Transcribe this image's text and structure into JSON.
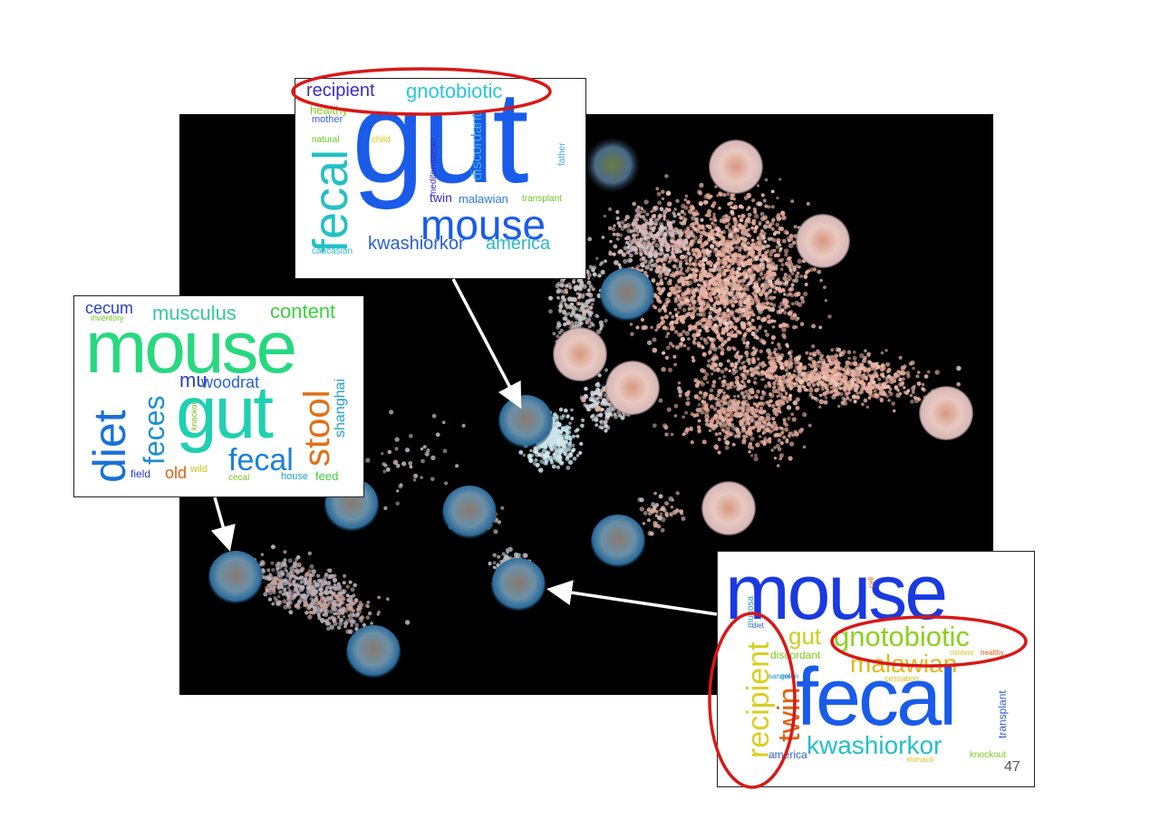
{
  "slide_number": "47",
  "colors": {
    "background": "#ffffff",
    "panel": "#000000",
    "highlight_ellipse": "#d81818",
    "arrow": "#ffffff",
    "point_human": "#e8b0a0",
    "point_mouse": "#c8e4ec"
  },
  "icons": [
    "mouse-photo-icon",
    "intestine-photo-icon",
    "landscape-photo-icon"
  ],
  "wordclouds": {
    "top": {
      "words": [
        {
          "t": "recipient",
          "c": "#3a2fb8"
        },
        {
          "t": "gnotobiotic",
          "c": "#2cc6d8"
        },
        {
          "t": "healthy",
          "c": "#8ccc20"
        },
        {
          "t": "mother",
          "c": "#3a5fd8"
        },
        {
          "t": "natural",
          "c": "#6cc820"
        },
        {
          "t": "child",
          "c": "#e0c820"
        },
        {
          "t": "gut",
          "c": "#1a5ce8"
        },
        {
          "t": "fecal",
          "c": "#24c0c4"
        },
        {
          "t": "mediterranean",
          "c": "#3a2fb8"
        },
        {
          "t": "discordant",
          "c": "#40a8e0"
        },
        {
          "t": "father",
          "c": "#40a8e0"
        },
        {
          "t": "twin",
          "c": "#3a2fb8"
        },
        {
          "t": "malawian",
          "c": "#2c7ae0"
        },
        {
          "t": "transplant",
          "c": "#6cc820"
        },
        {
          "t": "mouse",
          "c": "#1a5ce8"
        },
        {
          "t": "caucasian",
          "c": "#30b8c8"
        },
        {
          "t": "kwashiorkor",
          "c": "#2a60d0"
        },
        {
          "t": "america",
          "c": "#2cb8c8"
        }
      ]
    },
    "left": {
      "words": [
        {
          "t": "cecum",
          "c": "#2a40c0"
        },
        {
          "t": "inventory",
          "c": "#70c820"
        },
        {
          "t": "musculus",
          "c": "#38c8a0"
        },
        {
          "t": "content",
          "c": "#40d040"
        },
        {
          "t": "mouse",
          "c": "#28d880"
        },
        {
          "t": "diet",
          "c": "#1a70d8"
        },
        {
          "t": "feces",
          "c": "#2090d0"
        },
        {
          "t": "knockout",
          "c": "#80b820"
        },
        {
          "t": "mu",
          "c": "#2a40c0"
        },
        {
          "t": "woodrat",
          "c": "#2a60d0"
        },
        {
          "t": "gut",
          "c": "#20d0b0"
        },
        {
          "t": "stool",
          "c": "#e07018"
        },
        {
          "t": "shanghai",
          "c": "#20a0d0"
        },
        {
          "t": "fecal",
          "c": "#1a80d8"
        },
        {
          "t": "field",
          "c": "#2a40c0"
        },
        {
          "t": "old",
          "c": "#e06010"
        },
        {
          "t": "wild",
          "c": "#d0c020"
        },
        {
          "t": "cecal",
          "c": "#80c820"
        },
        {
          "t": "house",
          "c": "#20a0d0"
        },
        {
          "t": "feed",
          "c": "#40d040"
        }
      ]
    },
    "right": {
      "words": [
        {
          "t": "mouse",
          "c": "#1a3ae0"
        },
        {
          "t": "mucosa",
          "c": "#2090d0"
        },
        {
          "t": "diet",
          "c": "#2a60d0"
        },
        {
          "t": "cell",
          "c": "#e06010"
        },
        {
          "t": "gut",
          "c": "#c8d020"
        },
        {
          "t": "gnotobiotic",
          "c": "#8cd020"
        },
        {
          "t": "discordant",
          "c": "#80c820"
        },
        {
          "t": "content",
          "c": "#e0c020"
        },
        {
          "t": "healthy",
          "c": "#e06010"
        },
        {
          "t": "malawian",
          "c": "#e0b820"
        },
        {
          "t": "sanger",
          "c": "#2090d0"
        },
        {
          "t": "colon",
          "c": "#2090d0"
        },
        {
          "t": "cessation",
          "c": "#e0b820"
        },
        {
          "t": "recipient",
          "c": "#d8d020"
        },
        {
          "t": "twin",
          "c": "#e06010"
        },
        {
          "t": "fecal",
          "c": "#1a5ce8"
        },
        {
          "t": "america",
          "c": "#2a60d0"
        },
        {
          "t": "kwashiorkor",
          "c": "#24c0c4"
        },
        {
          "t": "transplant",
          "c": "#2a60d0"
        },
        {
          "t": "knockout",
          "c": "#80c820"
        },
        {
          "t": "stomach",
          "c": "#e0c020"
        }
      ]
    }
  }
}
